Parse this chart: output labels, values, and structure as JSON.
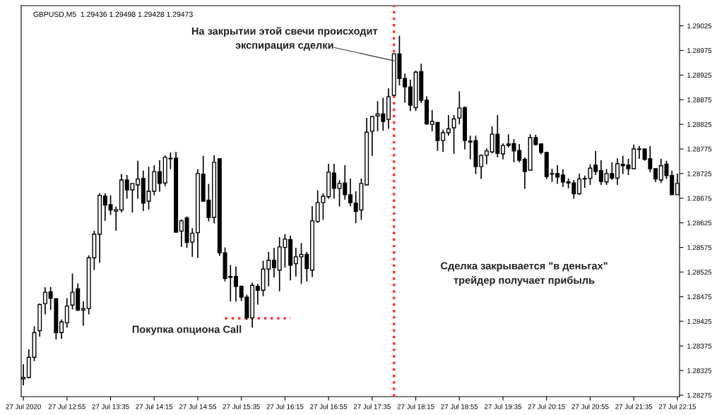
{
  "chart_data": {
    "type": "candlestick",
    "title": "GBPUSD,M5  1.29436 1.29498 1.29428 1.29473",
    "x": [
      "2020-07-27T12:15",
      "2020-07-27T12:20",
      "2020-07-27T12:25",
      "2020-07-27T12:30",
      "2020-07-27T12:35",
      "2020-07-27T12:40",
      "2020-07-27T12:45",
      "2020-07-27T12:50",
      "2020-07-27T12:55",
      "2020-07-27T13:00",
      "2020-07-27T13:05",
      "2020-07-27T13:10",
      "2020-07-27T13:15",
      "2020-07-27T13:20",
      "2020-07-27T13:25",
      "2020-07-27T13:30",
      "2020-07-27T13:35",
      "2020-07-27T13:40",
      "2020-07-27T13:45",
      "2020-07-27T13:50",
      "2020-07-27T13:55",
      "2020-07-27T14:00",
      "2020-07-27T14:05",
      "2020-07-27T14:10",
      "2020-07-27T14:15",
      "2020-07-27T14:20",
      "2020-07-27T14:25",
      "2020-07-27T14:30",
      "2020-07-27T14:35",
      "2020-07-27T14:40",
      "2020-07-27T14:45",
      "2020-07-27T14:50",
      "2020-07-27T14:55",
      "2020-07-27T15:00",
      "2020-07-27T15:05",
      "2020-07-27T15:10",
      "2020-07-27T15:15",
      "2020-07-27T15:20",
      "2020-07-27T15:25",
      "2020-07-27T15:30",
      "2020-07-27T15:35",
      "2020-07-27T15:40",
      "2020-07-27T15:45",
      "2020-07-27T15:50",
      "2020-07-27T15:55",
      "2020-07-27T16:00",
      "2020-07-27T16:05",
      "2020-07-27T16:10",
      "2020-07-27T16:15",
      "2020-07-27T16:20",
      "2020-07-27T16:25",
      "2020-07-27T16:30",
      "2020-07-27T16:35",
      "2020-07-27T16:40",
      "2020-07-27T16:45",
      "2020-07-27T16:50",
      "2020-07-27T16:55",
      "2020-07-27T17:00",
      "2020-07-27T17:05",
      "2020-07-27T17:10",
      "2020-07-27T17:15",
      "2020-07-27T17:20",
      "2020-07-27T17:25",
      "2020-07-27T17:30",
      "2020-07-27T17:35",
      "2020-07-27T17:40",
      "2020-07-27T17:45",
      "2020-07-27T17:50",
      "2020-07-27T17:55",
      "2020-07-27T18:00",
      "2020-07-27T18:05",
      "2020-07-27T18:10",
      "2020-07-27T18:15",
      "2020-07-27T18:20",
      "2020-07-27T18:25",
      "2020-07-27T18:30",
      "2020-07-27T18:35",
      "2020-07-27T18:40",
      "2020-07-27T18:45",
      "2020-07-27T18:50",
      "2020-07-27T18:55",
      "2020-07-27T19:00",
      "2020-07-27T19:05",
      "2020-07-27T19:10",
      "2020-07-27T19:15",
      "2020-07-27T19:20",
      "2020-07-27T19:25",
      "2020-07-27T19:30",
      "2020-07-27T19:35",
      "2020-07-27T19:40",
      "2020-07-27T19:45",
      "2020-07-27T19:50",
      "2020-07-27T19:55",
      "2020-07-27T20:00",
      "2020-07-27T20:05",
      "2020-07-27T20:10",
      "2020-07-27T20:15",
      "2020-07-27T20:20",
      "2020-07-27T20:25",
      "2020-07-27T20:30",
      "2020-07-27T20:35",
      "2020-07-27T20:40",
      "2020-07-27T20:45",
      "2020-07-27T20:50",
      "2020-07-27T20:55",
      "2020-07-27T21:00",
      "2020-07-27T21:05",
      "2020-07-27T21:10",
      "2020-07-27T21:15",
      "2020-07-27T21:20",
      "2020-07-27T21:25",
      "2020-07-27T21:30",
      "2020-07-27T21:35",
      "2020-07-27T21:40",
      "2020-07-27T21:45",
      "2020-07-27T21:50",
      "2020-07-27T21:55",
      "2020-07-27T22:00",
      "2020-07-27T22:05",
      "2020-07-27T22:10",
      "2020-07-27T22:15"
    ],
    "ohlc": [
      [
        1.28308,
        1.28338,
        1.28295,
        1.28311
      ],
      [
        1.28311,
        1.28368,
        1.28309,
        1.28352
      ],
      [
        1.28352,
        1.28415,
        1.28344,
        1.28402
      ],
      [
        1.28406,
        1.28461,
        1.28394,
        1.28459
      ],
      [
        1.28461,
        1.28494,
        1.28439,
        1.28484
      ],
      [
        1.28485,
        1.28495,
        1.28448,
        1.28472
      ],
      [
        1.28471,
        1.28471,
        1.28388,
        1.28402
      ],
      [
        1.28402,
        1.28429,
        1.28389,
        1.28424
      ],
      [
        1.28422,
        1.28472,
        1.28412,
        1.28456
      ],
      [
        1.28458,
        1.28522,
        1.28449,
        1.28484
      ],
      [
        1.28491,
        1.28502,
        1.28446,
        1.28448
      ],
      [
        1.28448,
        1.28466,
        1.28416,
        1.28451
      ],
      [
        1.28451,
        1.28559,
        1.28439,
        1.28554
      ],
      [
        1.28554,
        1.28609,
        1.28529,
        1.28602
      ],
      [
        1.28602,
        1.28685,
        1.28544,
        1.28681
      ],
      [
        1.28679,
        1.28685,
        1.28629,
        1.28661
      ],
      [
        1.28662,
        1.28681,
        1.28641,
        1.28651
      ],
      [
        1.28649,
        1.28658,
        1.28609,
        1.28652
      ],
      [
        1.28651,
        1.28724,
        1.28646,
        1.28712
      ],
      [
        1.28712,
        1.28722,
        1.28674,
        1.28692
      ],
      [
        1.28692,
        1.28705,
        1.28646,
        1.28705
      ],
      [
        1.28702,
        1.28751,
        1.28674,
        1.28714
      ],
      [
        1.28715,
        1.28731,
        1.28649,
        1.28665
      ],
      [
        1.28669,
        1.28739,
        1.28652,
        1.28689
      ],
      [
        1.28689,
        1.28742,
        1.28681,
        1.28729
      ],
      [
        1.28729,
        1.28752,
        1.28688,
        1.28705
      ],
      [
        1.28706,
        1.28762,
        1.28699,
        1.28758
      ],
      [
        1.28755,
        1.28768,
        1.28734,
        1.28756
      ],
      [
        1.28756,
        1.28769,
        1.28606,
        1.28606
      ],
      [
        1.28608,
        1.28632,
        1.28576,
        1.28629
      ],
      [
        1.28635,
        1.28638,
        1.28574,
        1.28585
      ],
      [
        1.28586,
        1.28614,
        1.28556,
        1.28604
      ],
      [
        1.28605,
        1.28734,
        1.28554,
        1.28725
      ],
      [
        1.28724,
        1.28761,
        1.28668,
        1.28669
      ],
      [
        1.28671,
        1.28704,
        1.28628,
        1.28636
      ],
      [
        1.28636,
        1.28762,
        1.28624,
        1.28748
      ],
      [
        1.28755,
        1.28756,
        1.28558,
        1.28564
      ],
      [
        1.28564,
        1.28575,
        1.28506,
        1.28512
      ],
      [
        1.28514,
        1.28539,
        1.28465,
        1.28516
      ],
      [
        1.28516,
        1.28536,
        1.28465,
        1.28496
      ],
      [
        1.28496,
        1.28498,
        1.28466,
        1.28474
      ],
      [
        1.28474,
        1.28479,
        1.28428,
        1.28432
      ],
      [
        1.28432,
        1.28504,
        1.28412,
        1.28498
      ],
      [
        1.28496,
        1.28501,
        1.28459,
        1.28488
      ],
      [
        1.28488,
        1.28548,
        1.28476,
        1.28531
      ],
      [
        1.28531,
        1.28566,
        1.28496,
        1.28549
      ],
      [
        1.28549,
        1.28574,
        1.28514,
        1.28534
      ],
      [
        1.28529,
        1.28596,
        1.28486,
        1.28576
      ],
      [
        1.28575,
        1.28602,
        1.28534,
        1.28592
      ],
      [
        1.28591,
        1.28599,
        1.28508,
        1.28539
      ],
      [
        1.28542,
        1.28574,
        1.28516,
        1.28556
      ],
      [
        1.28556,
        1.28584,
        1.28501,
        1.28561
      ],
      [
        1.28561,
        1.28566,
        1.28506,
        1.28532
      ],
      [
        1.28529,
        1.28659,
        1.28515,
        1.28629
      ],
      [
        1.28628,
        1.28691,
        1.28625,
        1.28666
      ],
      [
        1.28666,
        1.28685,
        1.28631,
        1.28679
      ],
      [
        1.28678,
        1.28745,
        1.28674,
        1.28728
      ],
      [
        1.28726,
        1.28745,
        1.28674,
        1.28695
      ],
      [
        1.28695,
        1.28712,
        1.28658,
        1.28705
      ],
      [
        1.28706,
        1.28742,
        1.28672,
        1.28682
      ],
      [
        1.28682,
        1.28715,
        1.28659,
        1.28666
      ],
      [
        1.28665,
        1.28689,
        1.28624,
        1.28648
      ],
      [
        1.28651,
        1.28715,
        1.28631,
        1.28705
      ],
      [
        1.28702,
        1.28838,
        1.28702,
        1.28809
      ],
      [
        1.28811,
        1.28841,
        1.28761,
        1.28841
      ],
      [
        1.28842,
        1.28872,
        1.28811,
        1.28846
      ],
      [
        1.28846,
        1.28879,
        1.28812,
        1.28831
      ],
      [
        1.28835,
        1.28898,
        1.28816,
        1.28881
      ],
      [
        1.28884,
        1.28969,
        1.28883,
        1.28968
      ],
      [
        1.28968,
        1.29005,
        1.28904,
        1.28918
      ],
      [
        1.28918,
        1.28928,
        1.28869,
        1.28901
      ],
      [
        1.28901,
        1.28916,
        1.28852,
        1.28864
      ],
      [
        1.28859,
        1.28934,
        1.28852,
        1.28931
      ],
      [
        1.28932,
        1.28948,
        1.28868,
        1.28874
      ],
      [
        1.28874,
        1.28882,
        1.28824,
        1.28826
      ],
      [
        1.28825,
        1.28854,
        1.28811,
        1.28831
      ],
      [
        1.28829,
        1.28829,
        1.28771,
        1.28792
      ],
      [
        1.28792,
        1.28814,
        1.28769,
        1.28808
      ],
      [
        1.28808,
        1.28844,
        1.28802,
        1.28816
      ],
      [
        1.28818,
        1.28844,
        1.28765,
        1.28836
      ],
      [
        1.28838,
        1.28892,
        1.28825,
        1.28858
      ],
      [
        1.28859,
        1.28861,
        1.28774,
        1.28792
      ],
      [
        1.28791,
        1.28802,
        1.28754,
        1.28789
      ],
      [
        1.28792,
        1.28802,
        1.28724,
        1.28739
      ],
      [
        1.28739,
        1.28764,
        1.28714,
        1.28762
      ],
      [
        1.28762,
        1.28776,
        1.28744,
        1.28771
      ],
      [
        1.28769,
        1.28821,
        1.28766,
        1.28805
      ],
      [
        1.28805,
        1.28844,
        1.28758,
        1.28766
      ],
      [
        1.28765,
        1.28786,
        1.28754,
        1.28782
      ],
      [
        1.28785,
        1.28805,
        1.28778,
        1.28782
      ],
      [
        1.28786,
        1.28795,
        1.28748,
        1.28771
      ],
      [
        1.28772,
        1.28785,
        1.28748,
        1.28752
      ],
      [
        1.28754,
        1.28758,
        1.28694,
        1.28729
      ],
      [
        1.28732,
        1.28805,
        1.28731,
        1.28798
      ],
      [
        1.28798,
        1.28804,
        1.28782,
        1.28784
      ],
      [
        1.28785,
        1.28786,
        1.28764,
        1.28768
      ],
      [
        1.28768,
        1.28769,
        1.28714,
        1.28719
      ],
      [
        1.28725,
        1.28735,
        1.28708,
        1.28724
      ],
      [
        1.28725,
        1.28742,
        1.28704,
        1.28718
      ],
      [
        1.28722,
        1.28734,
        1.28698,
        1.28708
      ],
      [
        1.28708,
        1.28715,
        1.28695,
        1.28706
      ],
      [
        1.28706,
        1.28712,
        1.28674,
        1.28684
      ],
      [
        1.28684,
        1.28725,
        1.28682,
        1.28714
      ],
      [
        1.28714,
        1.28721,
        1.28696,
        1.28715
      ],
      [
        1.28715,
        1.28744,
        1.28702,
        1.28736
      ],
      [
        1.28742,
        1.28771,
        1.28722,
        1.28729
      ],
      [
        1.28731,
        1.28752,
        1.28702,
        1.28709
      ],
      [
        1.28708,
        1.28734,
        1.28702,
        1.28725
      ],
      [
        1.28725,
        1.28748,
        1.28712,
        1.28716
      ],
      [
        1.28716,
        1.28756,
        1.28702,
        1.28745
      ],
      [
        1.28744,
        1.28761,
        1.28724,
        1.28741
      ],
      [
        1.28742,
        1.28755,
        1.28722,
        1.28735
      ],
      [
        1.28735,
        1.28784,
        1.28734,
        1.28775
      ],
      [
        1.28774,
        1.28781,
        1.28755,
        1.28775
      ],
      [
        1.28775,
        1.28775,
        1.28751,
        1.28754
      ],
      [
        1.28755,
        1.28781,
        1.28728,
        1.28735
      ],
      [
        1.28735,
        1.28735,
        1.28708,
        1.28714
      ],
      [
        1.28712,
        1.28755,
        1.28706,
        1.28741
      ],
      [
        1.28744,
        1.28751,
        1.28714,
        1.28721
      ],
      [
        1.28721,
        1.28731,
        1.28682,
        1.28682
      ],
      [
        1.28682,
        1.28725,
        1.28682,
        1.28705
      ]
    ],
    "series": [
      {
        "type": "line",
        "x": [
          "2020-07-27T15:20",
          "2020-07-27T16:20"
        ],
        "values": [
          1.28431,
          1.28431
        ],
        "color": "#ff3333",
        "line_style": "dotted"
      }
    ],
    "ref_lines": [
      {
        "axis": "x",
        "value": "2020-07-27T17:55",
        "color": "#ff3333",
        "line_style": "dotted"
      }
    ],
    "annotations": [
      {
        "text": "На закрытии этой свечи происходит\nэкспирация сделки",
        "x": "2020-07-27T17:55",
        "y": 1.28954
      },
      "Покупка опциона Call",
      "Сделка закрывается \"в деньгах\"\nтрейдер получает прибыль"
    ],
    "xlim": [
      "2020-07-27T12:13",
      "2020-07-27T22:17"
    ],
    "xticks": [
      {
        "value": "2020-07-27T12:15",
        "label": "27 Jul 2020"
      },
      {
        "value": "2020-07-27T12:55",
        "label": "27 Jul 12:55"
      },
      {
        "value": "2020-07-27T13:35",
        "label": "27 Jul 13:35"
      },
      {
        "value": "2020-07-27T14:15",
        "label": "27 Jul 14:15"
      },
      {
        "value": "2020-07-27T14:55",
        "label": "27 Jul 14:55"
      },
      {
        "value": "2020-07-27T15:35",
        "label": "27 Jul 15:35"
      },
      {
        "value": "2020-07-27T16:15",
        "label": "27 Jul 16:15"
      },
      {
        "value": "2020-07-27T16:55",
        "label": "27 Jul 16:55"
      },
      {
        "value": "2020-07-27T17:35",
        "label": "27 Jul 17:35"
      },
      {
        "value": "2020-07-27T18:15",
        "label": "27 Jul 18:15"
      },
      {
        "value": "2020-07-27T18:55",
        "label": "27 Jul 18:55"
      },
      {
        "value": "2020-07-27T19:35",
        "label": "27 Jul 19:35"
      },
      {
        "value": "2020-07-27T20:15",
        "label": "27 Jul 20:15"
      },
      {
        "value": "2020-07-27T20:55",
        "label": "27 Jul 20:55"
      },
      {
        "value": "2020-07-27T21:35",
        "label": "27 Jul 21:35"
      },
      {
        "value": "2020-07-27T22:15",
        "label": "27 Jul 22:15"
      }
    ],
    "ylim": [
      1.28272,
      1.29066
    ],
    "yticks": [
      1.28275,
      1.28325,
      1.28375,
      1.28425,
      1.28475,
      1.28525,
      1.28575,
      1.28625,
      1.28675,
      1.28725,
      1.28775,
      1.28825,
      1.28875,
      1.28925,
      1.28975,
      1.29025
    ],
    "color": "#000000",
    "grid": false,
    "legend": false
  }
}
